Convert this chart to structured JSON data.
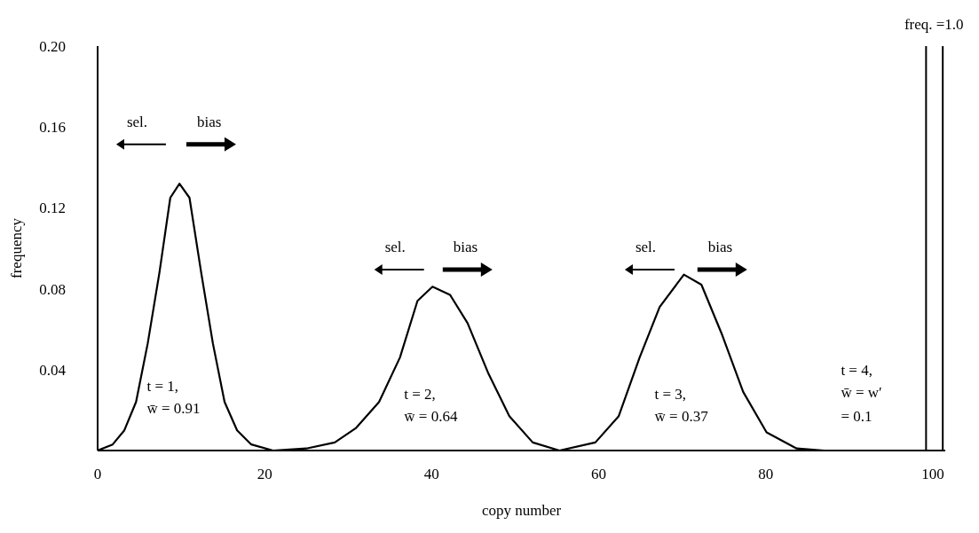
{
  "chart_data": {
    "type": "line",
    "xlabel": "copy number",
    "ylabel": "frequency",
    "x": [
      0,
      1.8,
      3.2,
      4.6,
      6.0,
      7.4,
      8.7,
      9.8,
      11.0,
      12.4,
      13.8,
      15.2,
      16.7,
      18.4,
      21,
      25,
      28.4,
      30.9,
      33.7,
      36.2,
      38.3,
      40.1,
      42.2,
      44.3,
      46.8,
      49.3,
      52.1,
      55.3,
      59.6,
      62.4,
      64.9,
      67.3,
      70.2,
      72.3,
      74.8,
      77.3,
      80.1,
      83.7,
      87,
      99.2
    ],
    "series": [
      {
        "color": "#000000",
        "values": [
          0,
          0.003,
          0.01,
          0.024,
          0.053,
          0.088,
          0.125,
          0.132,
          0.125,
          0.088,
          0.053,
          0.024,
          0.01,
          0.003,
          0,
          0.001,
          0.004,
          0.011,
          0.024,
          0.046,
          0.074,
          0.081,
          0.077,
          0.063,
          0.038,
          0.017,
          0.004,
          0,
          0.004,
          0.017,
          0.046,
          0.071,
          0.087,
          0.082,
          0.057,
          0.029,
          0.009,
          0.001,
          0,
          0
        ]
      }
    ],
    "xlim": [
      0,
      101.5
    ],
    "xticks": [
      0,
      20,
      40,
      60,
      80,
      100
    ],
    "ylim": [
      0,
      0.2
    ],
    "yticks": [
      0.04,
      0.08,
      0.12,
      0.16,
      {
        "value": 0.2,
        "label": "0.20"
      }
    ],
    "ref_lines": [
      {
        "axis": "x",
        "value": 99.2
      },
      {
        "axis": "x",
        "value": 101.2
      }
    ],
    "annotations": [
      "freq. =1.0",
      "sel.",
      "bias",
      "sel.",
      "bias",
      "sel.",
      "bias",
      "t = 1,",
      "w̄ = 0.91",
      "t = 2,",
      "w̄ = 0.64",
      "t = 3,",
      "w̄ = 0.37",
      "t = 4,",
      "w̄  = w′",
      "= 0.1"
    ],
    "grid": false,
    "legend": false,
    "marker": "none",
    "line_style": "solid"
  }
}
